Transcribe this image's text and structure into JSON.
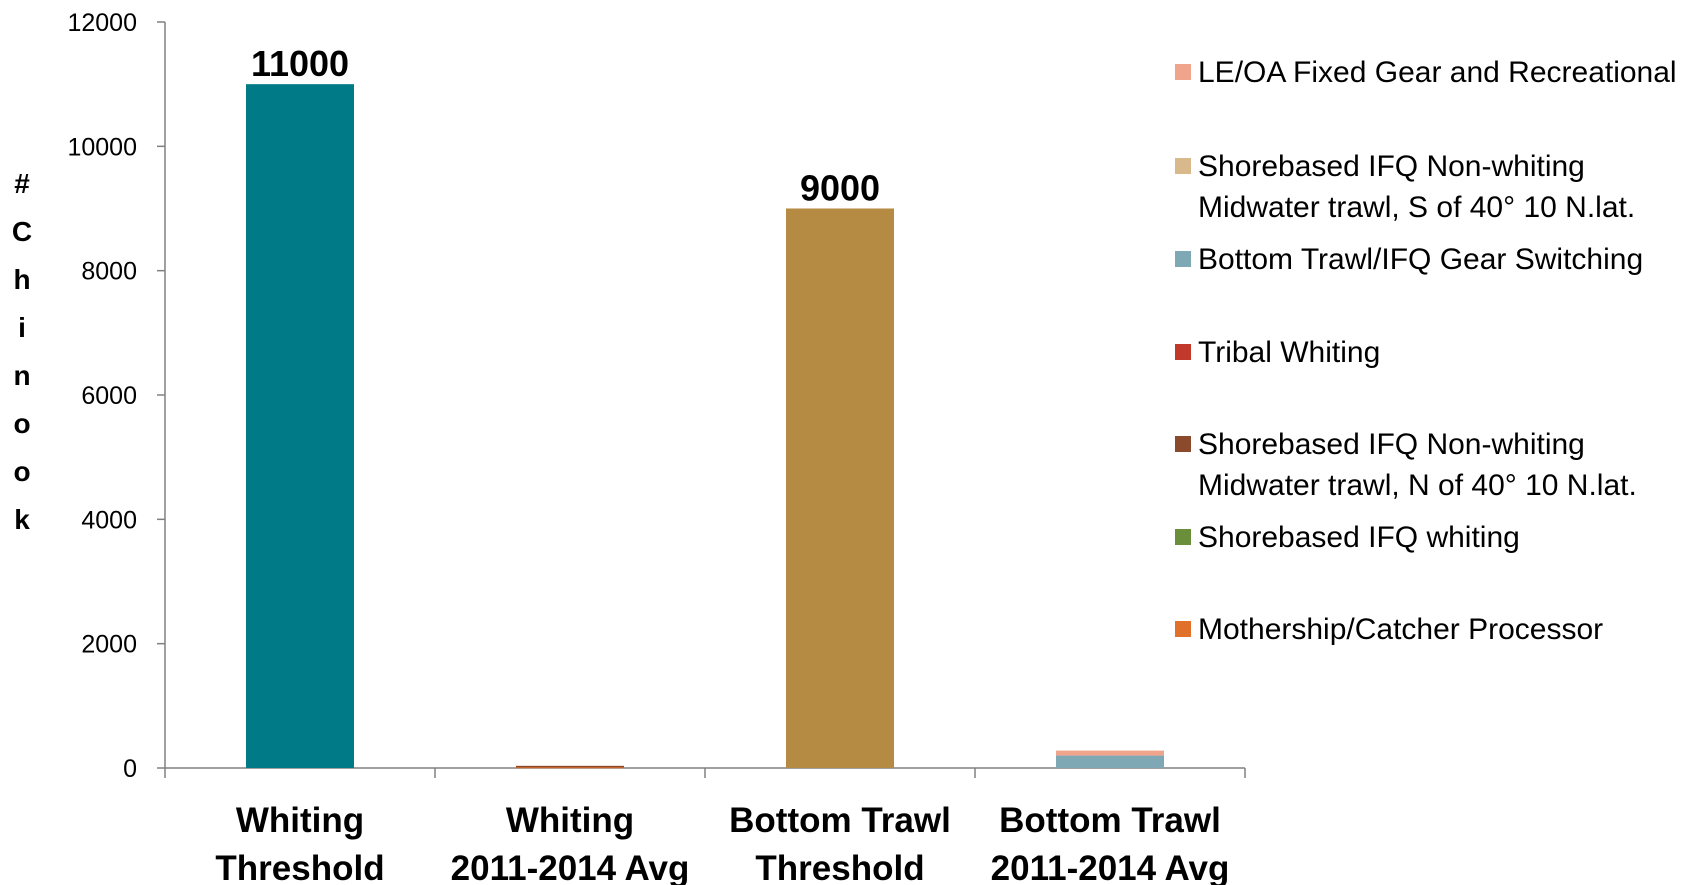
{
  "chart_data": {
    "type": "bar",
    "ylabel": "#Chinook",
    "ylim": [
      0,
      12000
    ],
    "yticks": [
      0,
      2000,
      4000,
      6000,
      8000,
      10000,
      12000
    ],
    "grid": false,
    "legend_position": "right",
    "categories": [
      [
        "Whiting",
        "Threshold"
      ],
      [
        "Whiting",
        "2011-2014 Avg"
      ],
      [
        "Bottom Trawl",
        "Threshold"
      ],
      [
        "Bottom Trawl",
        "2011-2014 Avg"
      ]
    ],
    "thresholds": [
      {
        "category_index": 0,
        "value": 11000,
        "label": "11000",
        "color": "#007A87"
      },
      {
        "category_index": 2,
        "value": 9000,
        "label": "9000",
        "color": "#B58A42"
      }
    ],
    "series": [
      {
        "name": "LE/OA Fixed Gear and Recreational",
        "color": "#F0A48C",
        "values": [
          0,
          0,
          0,
          80
        ]
      },
      {
        "name": "Shorebased IFQ Non-whiting Midwater trawl,  S of 40° 10 N.lat.",
        "color": "#D9B98C",
        "values": [
          0,
          0,
          0,
          0
        ]
      },
      {
        "name": "Bottom Trawl/IFQ Gear Switching",
        "color": "#7FA8B5",
        "values": [
          0,
          0,
          0,
          200
        ]
      },
      {
        "name": "Tribal Whiting",
        "color": "#C0392B",
        "values": [
          0,
          0,
          0,
          0
        ]
      },
      {
        "name": "Shorebased IFQ Non-whiting Midwater trawl, N of 40° 10 N.lat.",
        "color": "#8B4A2B",
        "values": [
          0,
          15,
          0,
          0
        ]
      },
      {
        "name": "Shorebased IFQ whiting",
        "color": "#6B8E3A",
        "values": [
          0,
          0,
          0,
          0
        ]
      },
      {
        "name": "Mothership/Catcher Processor",
        "color": "#E0702A",
        "values": [
          0,
          20,
          0,
          0
        ]
      }
    ]
  },
  "legend": {
    "entries": [
      {
        "lines": [
          "LE/OA Fixed Gear and Recreational"
        ],
        "color": "#F0A48C"
      },
      {
        "lines": [
          "Shorebased IFQ Non-whiting",
          "Midwater trawl,  S of 40° 10 N.lat."
        ],
        "color": "#D9B98C"
      },
      {
        "lines": [
          "Bottom Trawl/IFQ Gear Switching"
        ],
        "color": "#7FA8B5"
      },
      {
        "lines": [
          "Tribal Whiting"
        ],
        "color": "#C0392B"
      },
      {
        "lines": [
          "Shorebased IFQ Non-whiting",
          "Midwater trawl, N of 40° 10 N.lat."
        ],
        "color": "#8B4A2B"
      },
      {
        "lines": [
          "Shorebased IFQ whiting"
        ],
        "color": "#6B8E3A"
      },
      {
        "lines": [
          "Mothership/Catcher Processor"
        ],
        "color": "#E0702A"
      }
    ]
  }
}
